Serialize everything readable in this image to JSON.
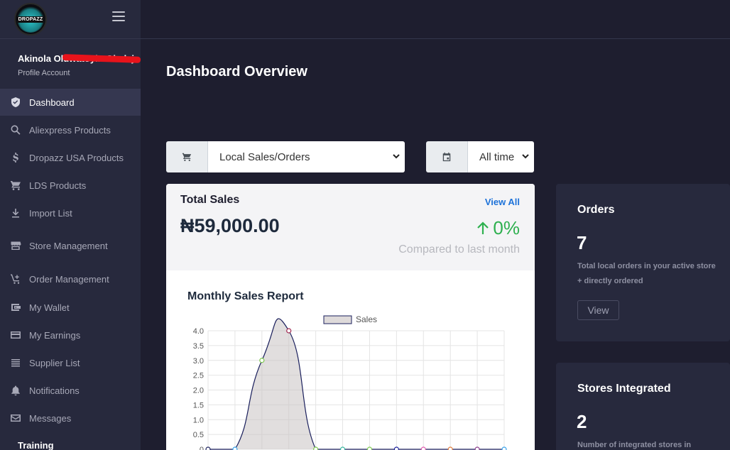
{
  "brand": {
    "logo_text": "DROPAZZ"
  },
  "user": {
    "name": "Akinola Oluwatoyin Oladejo",
    "profile_link": "Profile Account"
  },
  "nav": {
    "items": [
      {
        "label": "Dashboard",
        "icon": "shield-icon",
        "active": true
      },
      {
        "label": "Aliexpress Products",
        "icon": "search-icon"
      },
      {
        "label": "Dropazz USA Products",
        "icon": "dollar-icon"
      },
      {
        "label": "LDS Products",
        "icon": "cart-icon"
      },
      {
        "label": "Import List",
        "icon": "download-icon"
      },
      {
        "label": "Store Management",
        "icon": "store-icon"
      },
      {
        "label": "Order Management",
        "icon": "cart-add-icon"
      },
      {
        "label": "My Wallet",
        "icon": "wallet-icon"
      },
      {
        "label": "My Earnings",
        "icon": "card-icon"
      },
      {
        "label": "Supplier List",
        "icon": "list-icon"
      },
      {
        "label": "Notifications",
        "icon": "bell-icon"
      },
      {
        "label": "Messages",
        "icon": "mail-icon"
      }
    ],
    "section_label": "Training"
  },
  "page": {
    "title": "Dashboard Overview"
  },
  "filters": {
    "type": {
      "selected": "Local Sales/Orders",
      "icon": "cart-icon"
    },
    "period": {
      "selected": "All time",
      "icon": "calendar-icon"
    }
  },
  "sales": {
    "title": "Total Sales",
    "view_all": "View All",
    "amount": "₦59,000.00",
    "change": "0%",
    "compare": "Compared to last month",
    "change_color": "#2eb04f"
  },
  "chart_data": {
    "type": "area",
    "title": "Monthly Sales Report",
    "legend": [
      "Sales"
    ],
    "legend_position": "top",
    "grid": true,
    "ylim": [
      0,
      4.0
    ],
    "y_ticks": [
      "4.0",
      "3.5",
      "3.0",
      "2.5",
      "2.0",
      "1.5",
      "1.0",
      "0.5",
      "0"
    ],
    "series": [
      {
        "name": "Sales",
        "values": [
          0,
          0,
          3,
          4,
          0,
          0,
          0,
          0,
          0,
          0,
          0,
          0
        ]
      }
    ],
    "point_colors": [
      "#1a1f5c",
      "#36a2eb",
      "#7cc94e",
      "#a0274f",
      "#7cc94e",
      "#36b7a0",
      "#7cc94e",
      "#1a1f9c",
      "#e05cb0",
      "#e07a3a",
      "#8a3a8a",
      "#36a2eb"
    ]
  },
  "orders": {
    "title": "Orders",
    "count": "7",
    "description": "Total local orders in your active store + directly ordered",
    "button": "View"
  },
  "stores": {
    "title": "Stores Integrated",
    "count": "2",
    "description": "Number of integrated stores in"
  }
}
